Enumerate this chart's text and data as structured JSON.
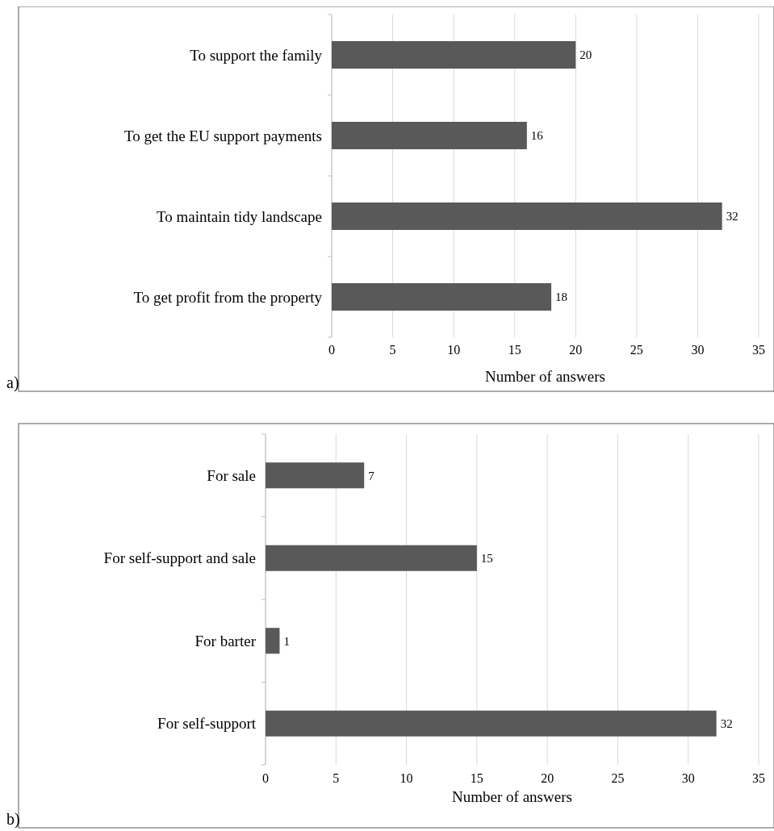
{
  "chart_data": [
    {
      "type": "bar",
      "orientation": "horizontal",
      "categories": [
        "To support the family",
        "To get the EU support payments",
        "To maintain tidy landscape",
        "To get profit from the property"
      ],
      "values": [
        20,
        16,
        32,
        18
      ],
      "color": "#595959",
      "xlim": [
        0,
        35
      ],
      "xticks": [
        0,
        5,
        10,
        15,
        20,
        25,
        30,
        35
      ],
      "xlabel": "Number of answers",
      "grid": "x",
      "data_labels": true,
      "annotations": [
        "a)"
      ]
    },
    {
      "type": "bar",
      "orientation": "horizontal",
      "categories": [
        "For sale",
        "For self-support and sale",
        "For barter",
        "For self-support"
      ],
      "values": [
        7,
        15,
        1,
        32
      ],
      "color": "#595959",
      "xlim": [
        0,
        35
      ],
      "xticks": [
        0,
        5,
        10,
        15,
        20,
        25,
        30,
        35
      ],
      "xlabel": "Number of answers",
      "grid": "x",
      "data_labels": true,
      "annotations": [
        "b)"
      ]
    }
  ]
}
